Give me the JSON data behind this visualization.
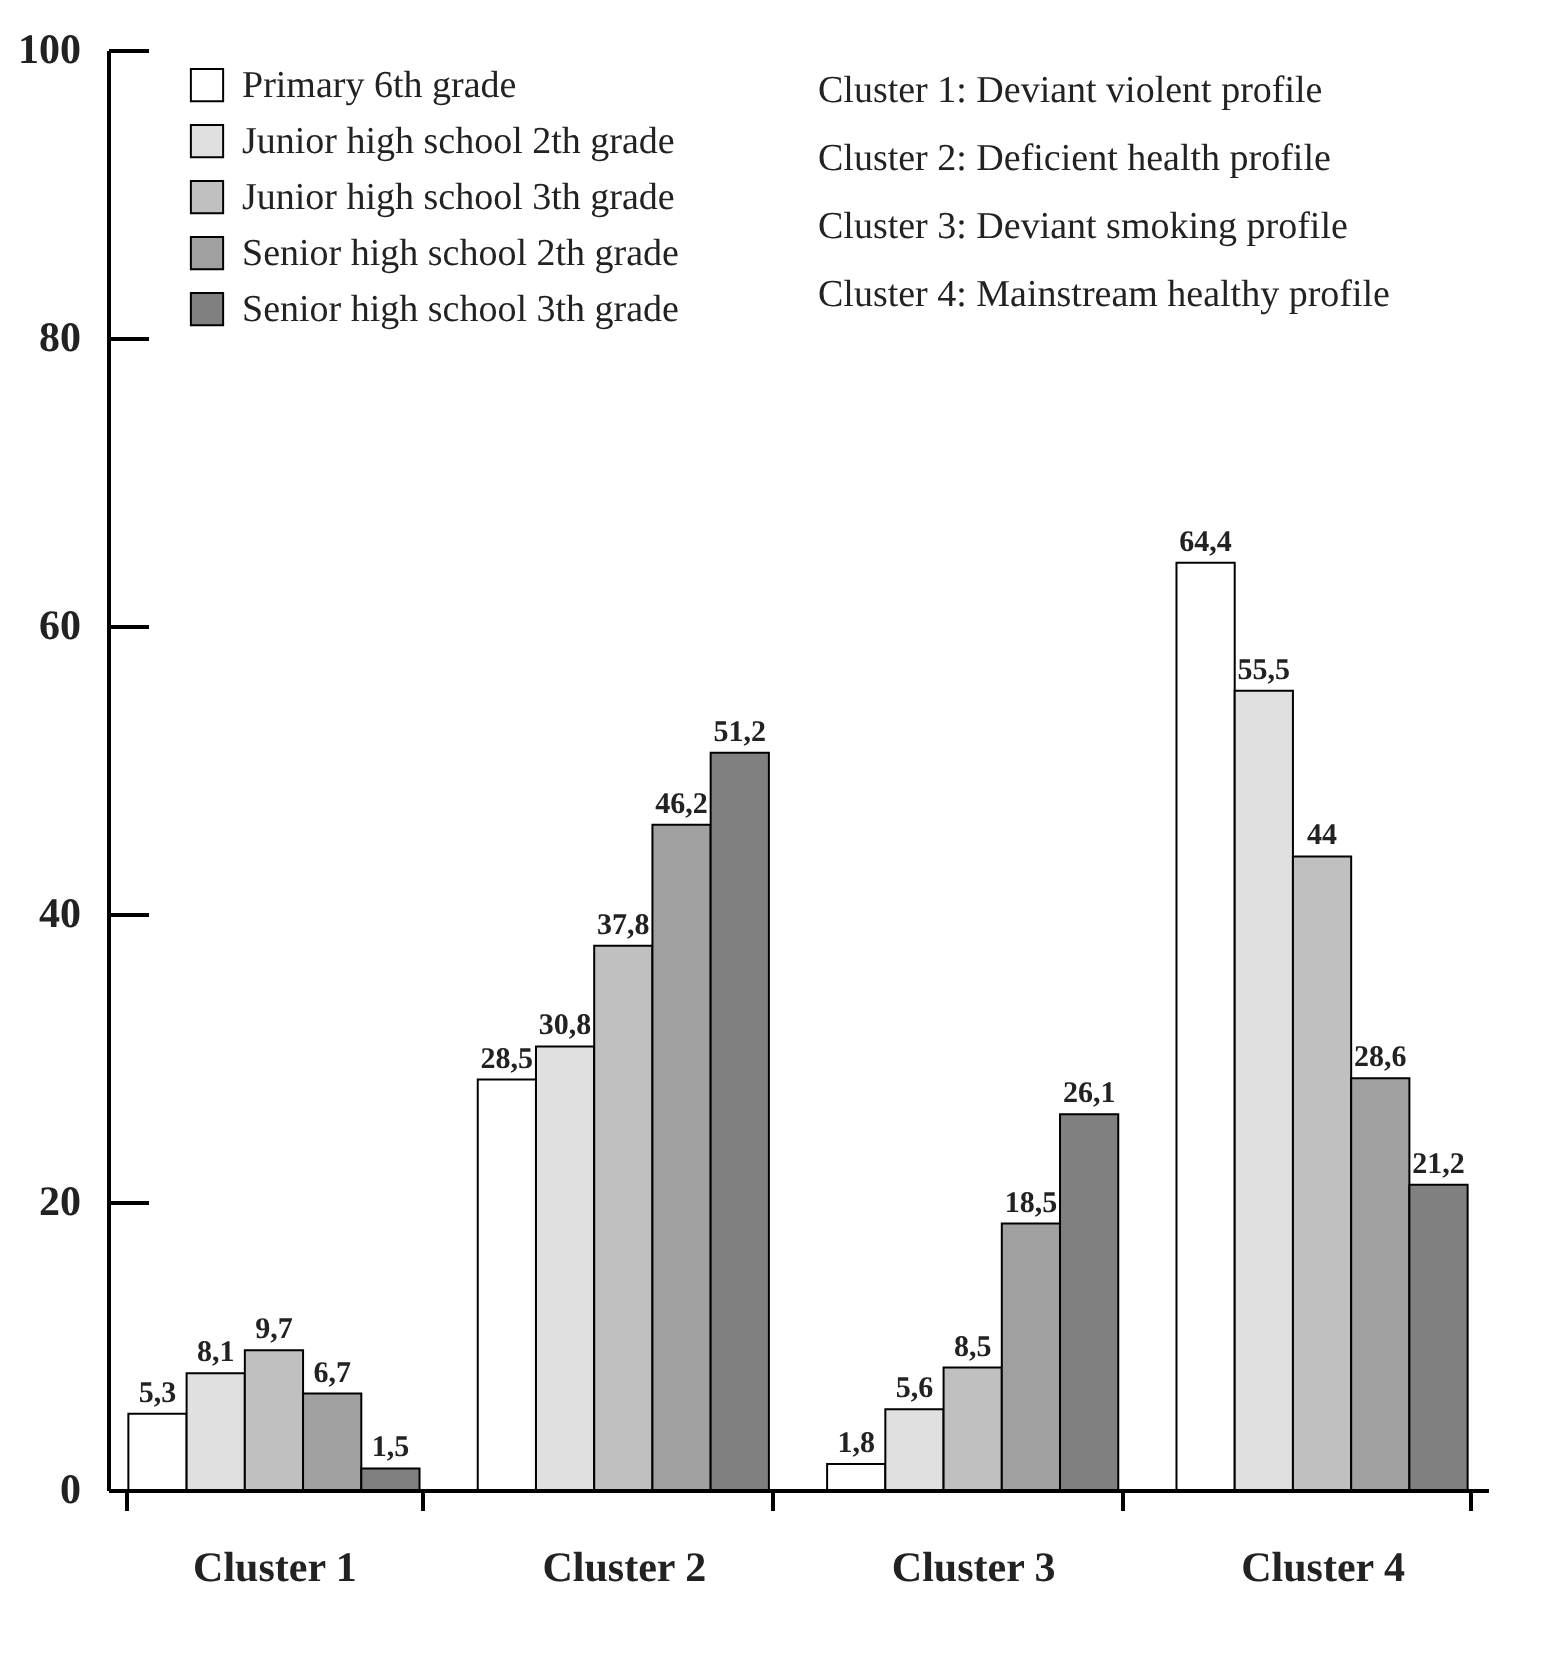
{
  "chart_data": {
    "type": "bar",
    "categories": [
      "Cluster 1",
      "Cluster 2",
      "Cluster 3",
      "Cluster 4"
    ],
    "series": [
      {
        "name": "Primary 6th grade",
        "color": "#ffffff",
        "values": [
          5.3,
          28.5,
          1.8,
          64.4
        ],
        "value_labels": [
          "5,3",
          "28,5",
          "1,8",
          "64,4"
        ]
      },
      {
        "name": "Junior high school 2th grade",
        "color": "#e0e0e0",
        "values": [
          8.1,
          30.8,
          5.6,
          55.5
        ],
        "value_labels": [
          "8,1",
          "30,8",
          "5,6",
          "55,5"
        ]
      },
      {
        "name": "Junior high school 3th grade",
        "color": "#c0c0c0",
        "values": [
          9.7,
          37.8,
          8.5,
          44
        ],
        "value_labels": [
          "9,7",
          "37,8",
          "8,5",
          "44"
        ]
      },
      {
        "name": "Senior high school 2th grade",
        "color": "#a0a0a0",
        "values": [
          6.7,
          46.2,
          18.5,
          28.6
        ],
        "value_labels": [
          "6,7",
          "46,2",
          "18,5",
          "28,6"
        ]
      },
      {
        "name": "Senior high school 3th grade",
        "color": "#808080",
        "values": [
          1.5,
          51.2,
          26.1,
          21.2
        ],
        "value_labels": [
          "1,5",
          "51,2",
          "26,1",
          "21,2"
        ]
      }
    ],
    "ylim": [
      0,
      100
    ],
    "yticks": [
      0,
      20,
      40,
      60,
      80,
      100
    ],
    "grid": false,
    "legend": "top left",
    "annotations": [
      "Cluster 1: Deviant violent profile",
      "Cluster 2: Deficient health profile",
      "Cluster 3: Deviant smoking profile",
      "Cluster 4: Mainstream healthy profile"
    ]
  }
}
